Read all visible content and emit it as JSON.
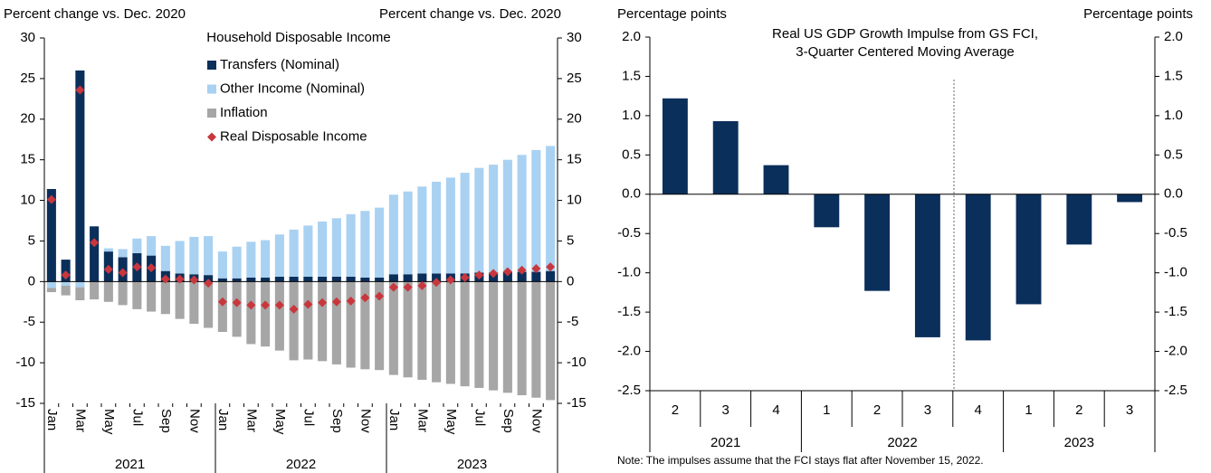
{
  "chart_data": [
    {
      "type": "stacked_bar",
      "title": "Household Disposable Income",
      "ylabel": "Percent change vs. Dec. 2020",
      "categories": [
        "Jan",
        null,
        "Mar",
        null,
        "May",
        null,
        "Jul",
        null,
        "Sep",
        null,
        "Nov",
        null,
        "Jan",
        null,
        "Mar",
        null,
        "May",
        null,
        "Jul",
        null,
        "Sep",
        null,
        "Nov",
        null,
        "Jan",
        null,
        "Mar",
        null,
        "May",
        null,
        "Jul",
        null,
        "Sep",
        null,
        "Nov",
        null
      ],
      "groups": [
        "2021",
        "2022",
        "2023"
      ],
      "ylim": [
        -15,
        30
      ],
      "yticks": [
        -15,
        -10,
        -5,
        0,
        5,
        10,
        15,
        20,
        25,
        30
      ],
      "series": [
        {
          "name": "Transfers (Nominal)",
          "color": "#0b2f5b",
          "values": [
            11.4,
            2.7,
            26.0,
            6.8,
            3.7,
            3.0,
            3.5,
            3.2,
            1.3,
            1.0,
            0.9,
            0.8,
            0.4,
            0.4,
            0.5,
            0.5,
            0.6,
            0.6,
            0.6,
            0.6,
            0.6,
            0.6,
            0.5,
            0.5,
            0.9,
            0.9,
            1.0,
            1.0,
            1.0,
            1.0,
            1.1,
            1.1,
            1.2,
            1.2,
            1.2,
            1.3
          ]
        },
        {
          "name": "Other Income (Nominal)",
          "color": "#a9d1f1",
          "values": [
            -0.8,
            -0.5,
            -0.7,
            0.0,
            0.4,
            1.0,
            1.8,
            2.4,
            3.1,
            4.0,
            4.6,
            4.8,
            3.3,
            3.9,
            4.4,
            4.6,
            5.2,
            5.8,
            6.3,
            6.8,
            7.2,
            7.7,
            8.2,
            8.6,
            9.8,
            10.2,
            10.7,
            11.3,
            11.8,
            12.4,
            12.9,
            13.3,
            13.8,
            14.4,
            15.0,
            15.4
          ]
        },
        {
          "name": "Inflation",
          "color": "#a6a6a6",
          "values": [
            -0.5,
            -1.2,
            -1.6,
            -2.2,
            -2.5,
            -2.9,
            -3.4,
            -3.7,
            -4.0,
            -4.6,
            -5.2,
            -5.7,
            -6.2,
            -6.8,
            -7.7,
            -8.0,
            -8.5,
            -9.7,
            -9.6,
            -9.8,
            -10.2,
            -10.6,
            -10.8,
            -10.9,
            -11.5,
            -11.8,
            -12.1,
            -12.4,
            -12.6,
            -12.9,
            -13.1,
            -13.4,
            -13.7,
            -14.0,
            -14.3,
            -14.6
          ]
        },
        {
          "name": "Real Disposable Income",
          "color": "#c8373d",
          "type": "scatter",
          "values": [
            10.1,
            0.8,
            23.6,
            4.8,
            1.5,
            1.1,
            1.8,
            1.7,
            0.3,
            0.3,
            0.2,
            -0.2,
            -2.5,
            -2.6,
            -2.9,
            -2.9,
            -2.9,
            -3.4,
            -2.8,
            -2.6,
            -2.5,
            -2.4,
            -2.0,
            -1.8,
            -0.7,
            -0.7,
            -0.5,
            -0.1,
            0.2,
            0.5,
            0.8,
            1.0,
            1.2,
            1.4,
            1.6,
            1.8
          ]
        }
      ]
    },
    {
      "type": "bar",
      "title": "Real US GDP Growth Impulse from GS FCI,",
      "subtitle": "3-Quarter Centered Moving Average",
      "ylabel": "Percentage points",
      "note": "Note: The impulses assume that the FCI stays flat after November 15, 2022.",
      "categories": [
        "2",
        "3",
        "4",
        "1",
        "2",
        "3",
        "4",
        "1",
        "2",
        "3"
      ],
      "groups": [
        "2021",
        "2022",
        "2023"
      ],
      "color": "#0b2f5b",
      "values": [
        1.22,
        0.93,
        0.37,
        -0.42,
        -1.23,
        -1.82,
        -1.86,
        -1.4,
        -0.64,
        -0.1
      ],
      "ylim": [
        -2.5,
        2.0
      ],
      "yticks": [
        -2.5,
        {
          "value": -2.0,
          "label": "-2.0"
        },
        -1.5,
        {
          "value": -1.0,
          "label": "-1.0"
        },
        -0.5,
        {
          "value": 0.0,
          "label": "0.0"
        },
        0.5,
        {
          "value": 1.0,
          "label": "1.0"
        },
        1.5,
        {
          "value": 2.0,
          "label": "2.0"
        }
      ]
    }
  ]
}
